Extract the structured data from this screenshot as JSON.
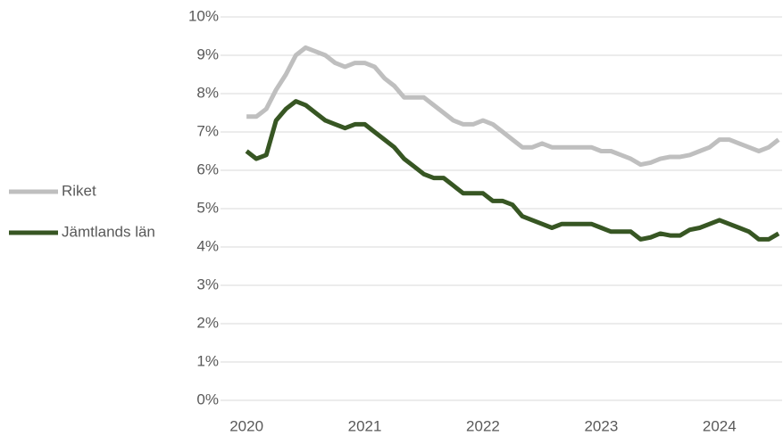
{
  "chart_data": {
    "type": "line",
    "x": [
      2020,
      2020.083,
      2020.167,
      2020.25,
      2020.333,
      2020.417,
      2020.5,
      2020.583,
      2020.667,
      2020.75,
      2020.833,
      2020.917,
      2021,
      2021.083,
      2021.167,
      2021.25,
      2021.333,
      2021.417,
      2021.5,
      2021.583,
      2021.667,
      2021.75,
      2021.833,
      2021.917,
      2022,
      2022.083,
      2022.167,
      2022.25,
      2022.333,
      2022.417,
      2022.5,
      2022.583,
      2022.667,
      2022.75,
      2022.833,
      2022.917,
      2023,
      2023.083,
      2023.167,
      2023.25,
      2023.333,
      2023.417,
      2023.5,
      2023.583,
      2023.667,
      2023.75,
      2023.833,
      2023.917,
      2024,
      2024.083,
      2024.167,
      2024.25,
      2024.333,
      2024.417,
      2024.5
    ],
    "series": [
      {
        "name": "Riket",
        "color": "#bfbfbf",
        "values": [
          7.4,
          7.4,
          7.6,
          8.1,
          8.5,
          9.0,
          9.2,
          9.1,
          9.0,
          8.8,
          8.7,
          8.8,
          8.8,
          8.7,
          8.4,
          8.2,
          7.9,
          7.9,
          7.9,
          7.7,
          7.5,
          7.3,
          7.2,
          7.2,
          7.3,
          7.2,
          7.0,
          6.8,
          6.6,
          6.6,
          6.7,
          6.6,
          6.6,
          6.6,
          6.6,
          6.6,
          6.5,
          6.5,
          6.4,
          6.3,
          6.15,
          6.2,
          6.3,
          6.35,
          6.35,
          6.4,
          6.5,
          6.6,
          6.8,
          6.8,
          6.7,
          6.6,
          6.5,
          6.6,
          6.8
        ]
      },
      {
        "name": "Jämtlands län",
        "color": "#375623",
        "values": [
          6.5,
          6.3,
          6.4,
          7.3,
          7.6,
          7.8,
          7.7,
          7.5,
          7.3,
          7.2,
          7.1,
          7.2,
          7.2,
          7.0,
          6.8,
          6.6,
          6.3,
          6.1,
          5.9,
          5.8,
          5.8,
          5.6,
          5.4,
          5.4,
          5.4,
          5.2,
          5.2,
          5.1,
          4.8,
          4.7,
          4.6,
          4.5,
          4.6,
          4.6,
          4.6,
          4.6,
          4.5,
          4.4,
          4.4,
          4.4,
          4.2,
          4.25,
          4.35,
          4.3,
          4.3,
          4.45,
          4.5,
          4.6,
          4.7,
          4.6,
          4.5,
          4.4,
          4.2,
          4.2,
          4.35
        ]
      }
    ],
    "xlim": [
      2019.78,
      2024.53
    ],
    "xticks": [
      2020,
      2021,
      2022,
      2023,
      2024
    ],
    "ylim": [
      0,
      10
    ],
    "yticks": [
      {
        "value": 0,
        "label": "0%"
      },
      {
        "value": 1,
        "label": "1%"
      },
      {
        "value": 2,
        "label": "2%"
      },
      {
        "value": 3,
        "label": "3%"
      },
      {
        "value": 4,
        "label": "4%"
      },
      {
        "value": 5,
        "label": "5%"
      },
      {
        "value": 6,
        "label": "6%"
      },
      {
        "value": 7,
        "label": "7%"
      },
      {
        "value": 8,
        "label": "8%"
      },
      {
        "value": 9,
        "label": "9%"
      },
      {
        "value": 10,
        "label": "10%"
      }
    ],
    "grid": true,
    "legend": "left"
  }
}
